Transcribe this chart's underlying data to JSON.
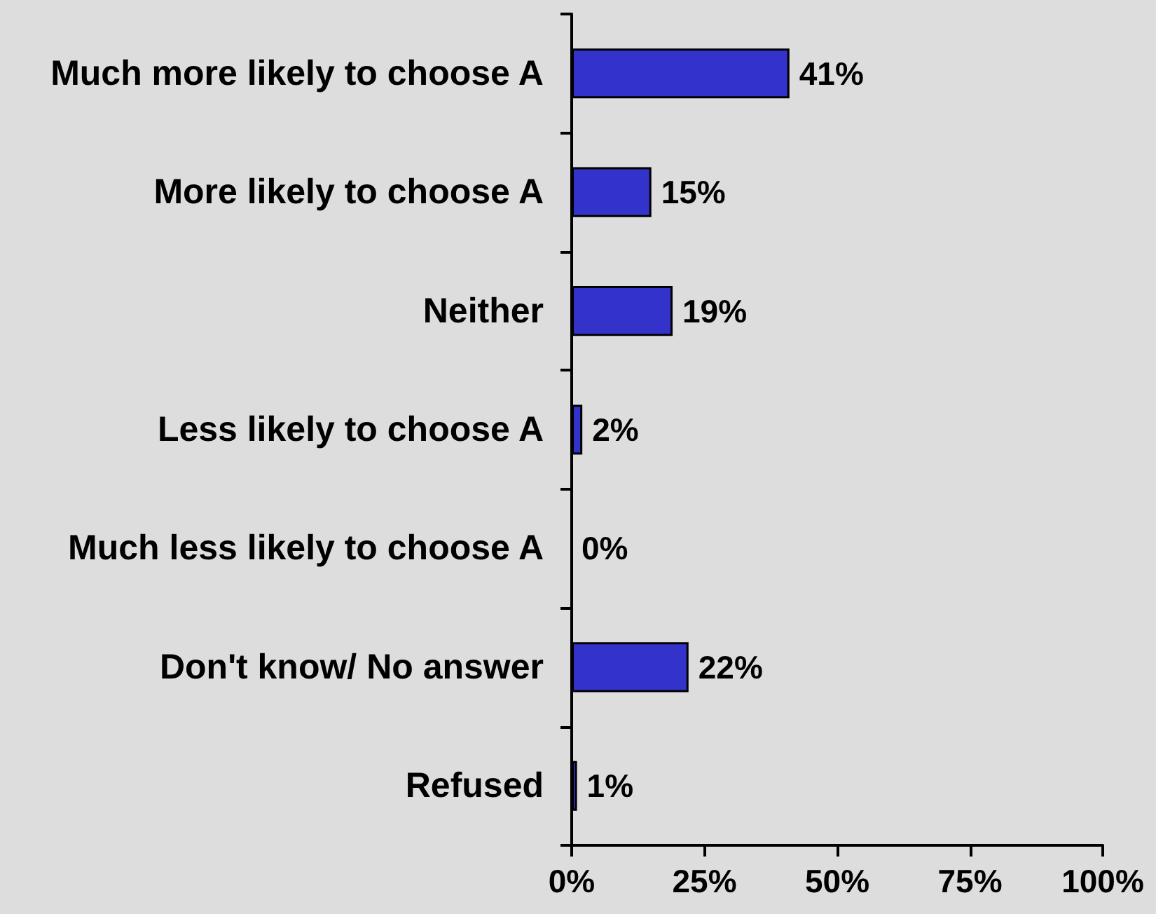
{
  "chart_data": {
    "type": "bar",
    "orientation": "horizontal",
    "categories": [
      "Much more likely to choose A",
      "More likely to choose A",
      "Neither",
      "Less likely to choose A",
      "Much less likely to choose A",
      "Don't know/ No answer",
      "Refused"
    ],
    "values": [
      41,
      15,
      19,
      2,
      0,
      22,
      1
    ],
    "color": "#3333cc",
    "value_labels": [
      "41%",
      "15%",
      "19%",
      "2%",
      "0%",
      "22%",
      "1%"
    ],
    "xlim": [
      0,
      100
    ],
    "xticks": [
      {
        "value": 0,
        "label": "0%"
      },
      {
        "value": 25,
        "label": "25%"
      },
      {
        "value": 50,
        "label": "50%"
      },
      {
        "value": 75,
        "label": "75%"
      },
      {
        "value": 100,
        "label": "100%"
      }
    ]
  }
}
